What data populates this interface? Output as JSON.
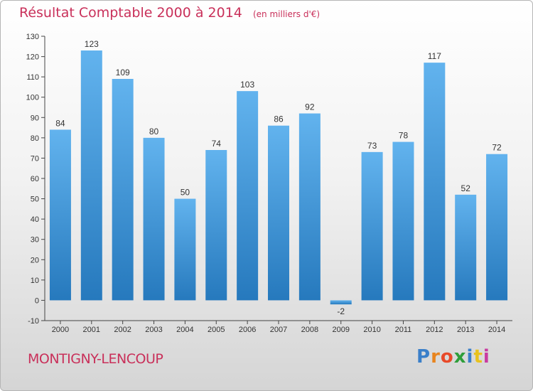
{
  "header": {
    "title": "Résultat Comptable 2000 à 2014",
    "subtitle": "(en milliers d'€)"
  },
  "footer": {
    "town": "MONTIGNY-LENCOUP",
    "brand_letters": [
      {
        "ch": "P",
        "color": "#3a7fc9"
      },
      {
        "ch": "r",
        "color": "#e8841e"
      },
      {
        "ch": "o",
        "color": "#e84a2a"
      },
      {
        "ch": "x",
        "color": "#2f9e3a"
      },
      {
        "ch": "i",
        "color": "#3a7fc9"
      },
      {
        "ch": "t",
        "color": "#e8c21e"
      },
      {
        "ch": "i",
        "color": "#c93aa0"
      }
    ]
  },
  "colors": {
    "bar_top": "#62b3ee",
    "bar_bottom": "#2679bd",
    "accent": "#c9305a"
  },
  "chart_data": {
    "type": "bar",
    "title": "Résultat Comptable 2000 à 2014",
    "subtitle": "(en milliers d'€)",
    "categories": [
      "2000",
      "2001",
      "2002",
      "2003",
      "2004",
      "2005",
      "2006",
      "2007",
      "2008",
      "2009",
      "2010",
      "2011",
      "2012",
      "2013",
      "2014"
    ],
    "values": [
      84,
      123,
      109,
      80,
      50,
      74,
      103,
      86,
      92,
      -2,
      73,
      78,
      117,
      52,
      72
    ],
    "ylim": [
      -10,
      130
    ],
    "yticks": [
      -10,
      0,
      10,
      20,
      30,
      40,
      50,
      60,
      70,
      80,
      90,
      100,
      110,
      120,
      130
    ],
    "grid": false,
    "xlabel": "",
    "ylabel": ""
  }
}
